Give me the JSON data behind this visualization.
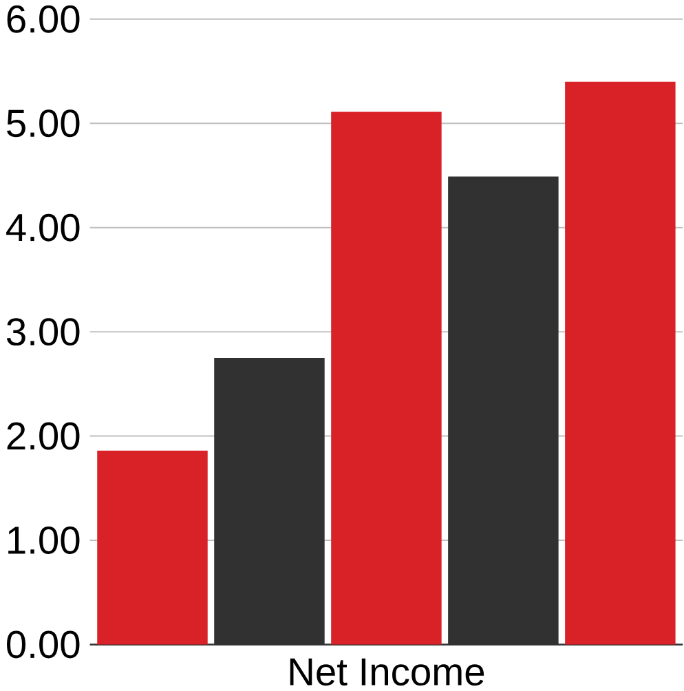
{
  "chart_data": {
    "type": "bar",
    "categories": [
      null,
      null,
      null,
      null,
      null
    ],
    "xlabel": "Net Income",
    "values": [
      1.86,
      2.75,
      5.11,
      4.49,
      5.4
    ],
    "colors": [
      "#d92128",
      "#313131",
      "#d92128",
      "#313131",
      "#d92128"
    ],
    "ylim": [
      0,
      6
    ],
    "yticks": [
      {
        "value": 0,
        "label": "0.00"
      },
      {
        "value": 1,
        "label": "1.00"
      },
      {
        "value": 2,
        "label": "2.00"
      },
      {
        "value": 3,
        "label": "3.00"
      },
      {
        "value": 4,
        "label": "4.00"
      },
      {
        "value": 5,
        "label": "5.00"
      },
      {
        "value": 6,
        "label": "6.00"
      }
    ],
    "grid": "y"
  }
}
